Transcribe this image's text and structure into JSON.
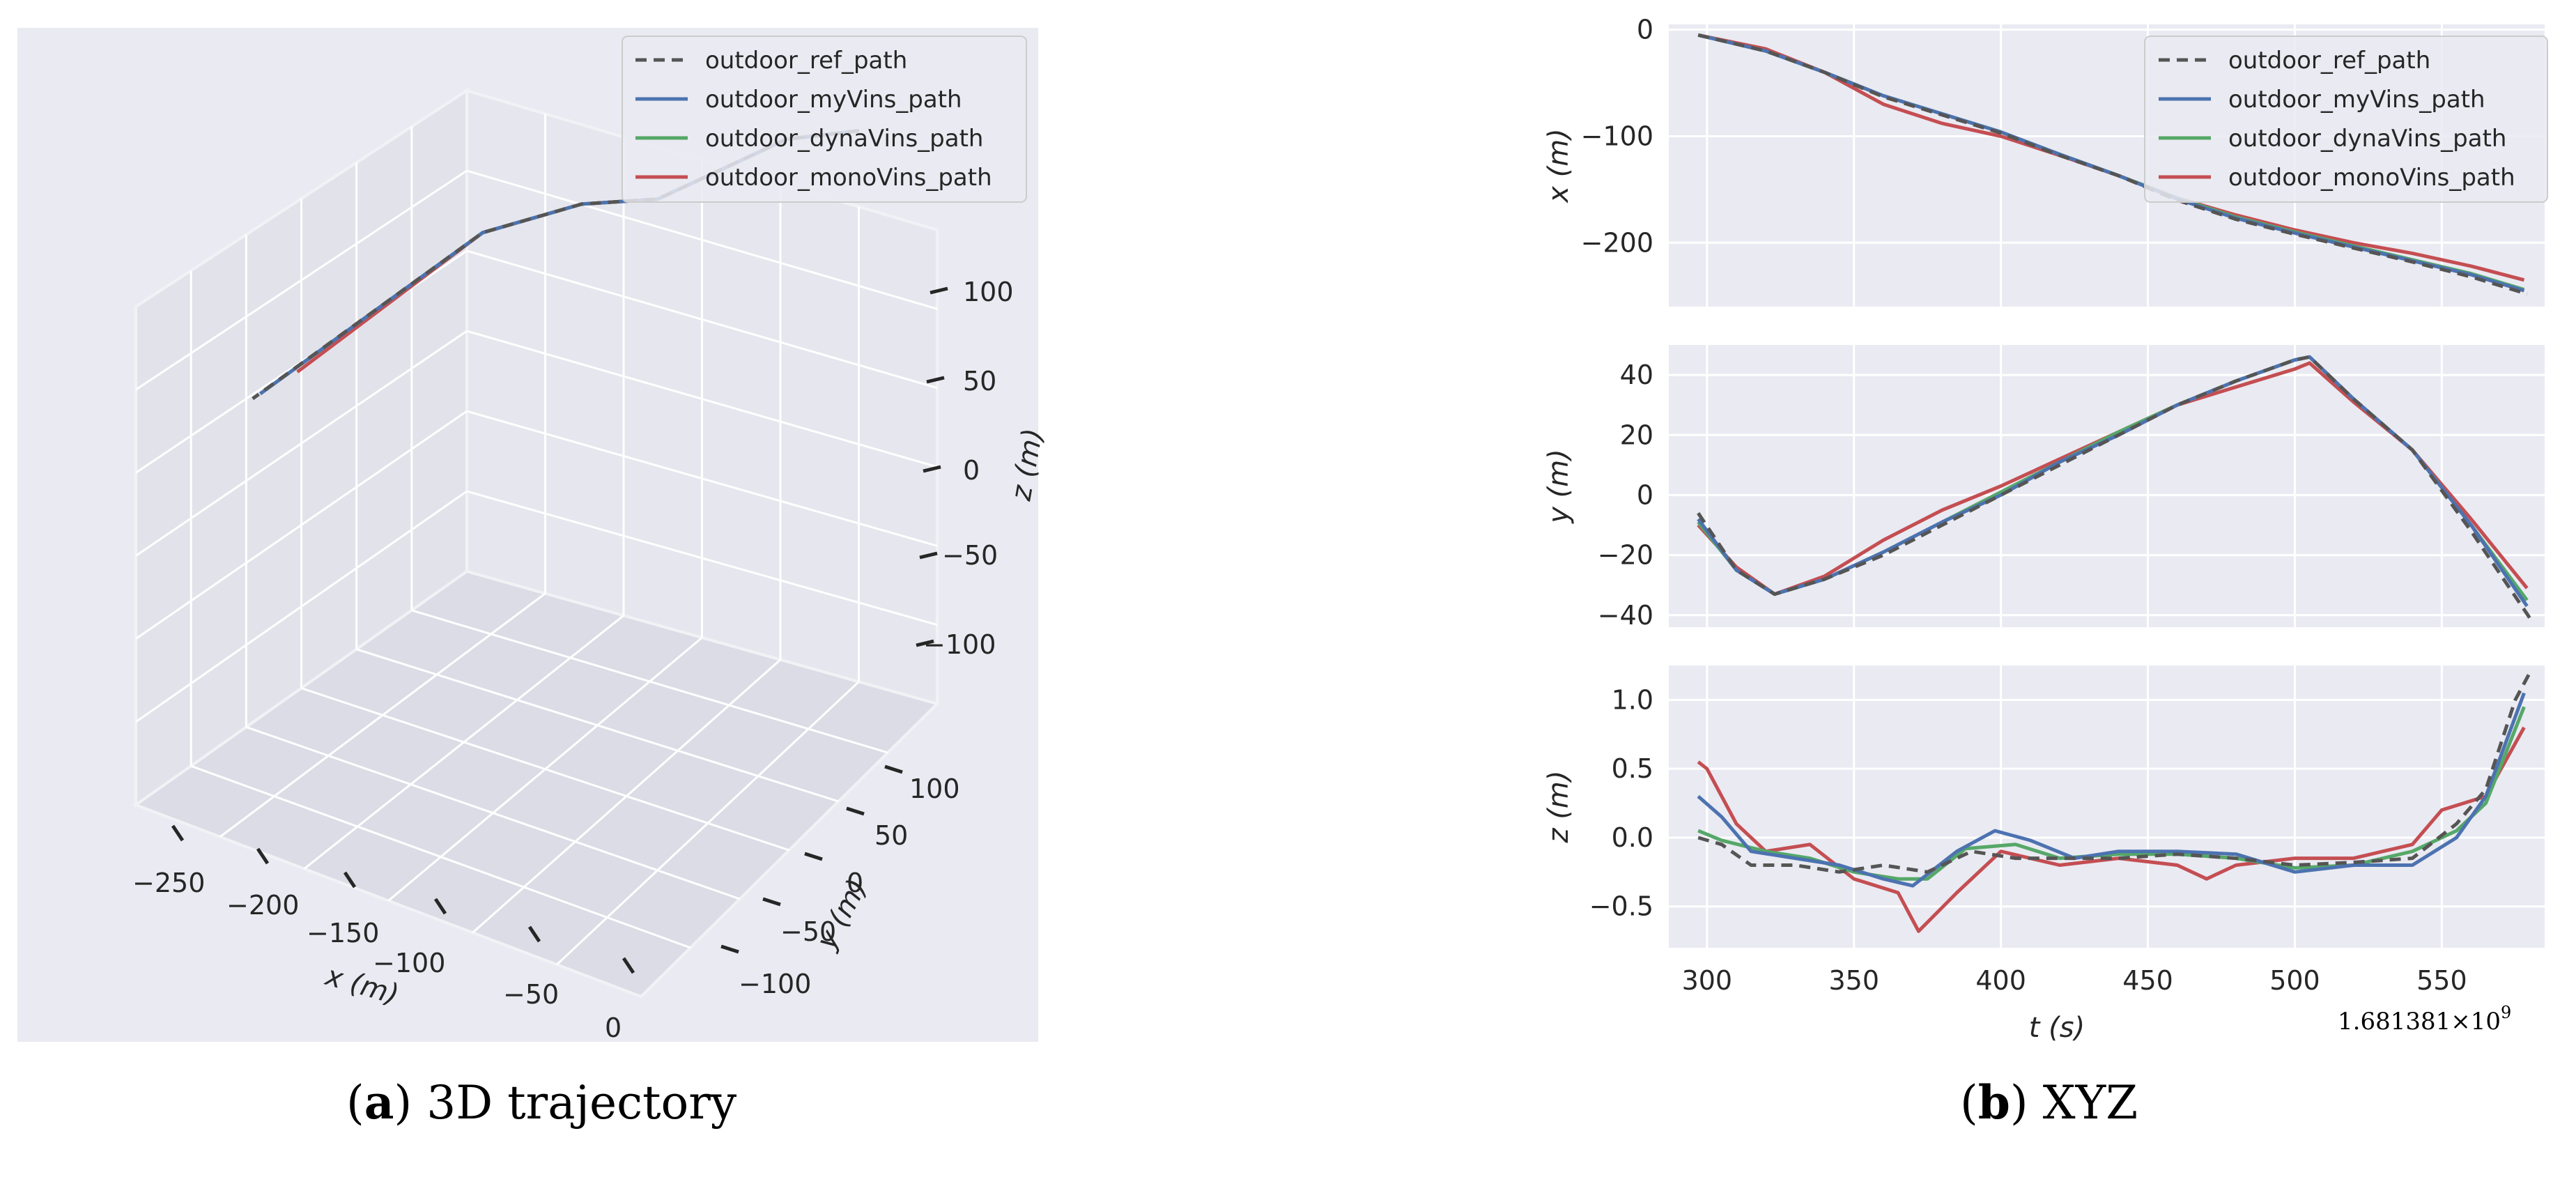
{
  "colors": {
    "background": "#eaeaf2",
    "grid": "#ffffff",
    "ref": "#555555",
    "myVins": "#4c72b0",
    "dynaVins": "#55a868",
    "monoVins": "#c44e52"
  },
  "captions": {
    "a_letter": "a",
    "a_text": " 3D trajectory",
    "b_letter": "b",
    "b_text": " XYZ",
    "lparen": "(",
    "rparen": ")"
  },
  "chart_data": [
    {
      "type": "line",
      "projection": "3d",
      "xlabel": "x (m)",
      "ylabel": "y (m)",
      "zlabel": "z (m)",
      "x_ticks": [
        "−250",
        "−200",
        "−150",
        "−100",
        "−50",
        "0"
      ],
      "y_ticks": [
        "100",
        "50",
        "0",
        "−50",
        "−100"
      ],
      "z_ticks": [
        "100",
        "50",
        "0",
        "−50",
        "−100"
      ],
      "xlim": [
        -260,
        0
      ],
      "ylim": [
        -120,
        120
      ],
      "zlim": [
        -120,
        120
      ],
      "legend_position": "top-right",
      "series": [
        {
          "name": "outdoor_ref_path",
          "style": "dashed",
          "x": [
            -5,
            -50,
            -100,
            -150,
            -200,
            -248
          ],
          "y": [
            -5,
            15,
            5,
            30,
            40,
            -40
          ],
          "z": [
            0,
            0,
            0,
            0,
            0,
            1
          ]
        },
        {
          "name": "outdoor_myVins_path",
          "style": "solid",
          "x": [
            -5,
            -50,
            -100,
            -150,
            -200,
            -246
          ],
          "y": [
            -5,
            15,
            5,
            30,
            40,
            -38
          ],
          "z": [
            0,
            0,
            0,
            0,
            0,
            1
          ]
        },
        {
          "name": "outdoor_dynaVins_path",
          "style": "solid",
          "x": [
            -5,
            -50,
            -100,
            -150,
            -200,
            -245
          ],
          "y": [
            -5,
            15,
            5,
            30,
            40,
            -36
          ],
          "z": [
            0,
            0,
            0,
            0,
            0,
            0.9
          ]
        },
        {
          "name": "outdoor_monoVins_path",
          "style": "solid",
          "x": [
            -5,
            -50,
            -100,
            -150,
            -200,
            -235
          ],
          "y": [
            -5,
            15,
            5,
            30,
            40,
            -30
          ],
          "z": [
            0,
            0,
            0,
            0,
            0,
            0.8
          ]
        }
      ]
    },
    {
      "type": "line",
      "xlabel": "t (s)",
      "offset_label": "1.681381×10",
      "offset_exp": "9",
      "x_ticks": [
        300,
        350,
        400,
        450,
        500,
        550
      ],
      "xlim": [
        287,
        585
      ],
      "legend_position": "top-right",
      "legend": [
        "outdoor_ref_path",
        "outdoor_myVins_path",
        "outdoor_dynaVins_path",
        "outdoor_monoVins_path"
      ],
      "panels": [
        {
          "ylabel": "x (m)",
          "ylim": [
            -260,
            5
          ],
          "y_ticks": [
            0,
            -100,
            -200
          ],
          "series": [
            {
              "name": "outdoor_ref_path",
              "x": [
                297,
                320,
                340,
                360,
                380,
                400,
                420,
                440,
                460,
                480,
                500,
                520,
                540,
                560,
                579
              ],
              "y": [
                -5,
                -20,
                -40,
                -63,
                -80,
                -97,
                -118,
                -137,
                -160,
                -178,
                -192,
                -205,
                -218,
                -232,
                -248
              ]
            },
            {
              "name": "outdoor_myVins_path",
              "x": [
                297,
                320,
                340,
                360,
                380,
                400,
                420,
                440,
                460,
                480,
                500,
                520,
                540,
                560,
                578
              ],
              "y": [
                -5,
                -20,
                -40,
                -62,
                -79,
                -96,
                -117,
                -137,
                -159,
                -177,
                -191,
                -204,
                -217,
                -230,
                -245
              ]
            },
            {
              "name": "outdoor_dynaVins_path",
              "x": [
                297,
                320,
                340,
                360,
                380,
                400,
                420,
                440,
                460,
                480,
                500,
                520,
                540,
                560,
                578
              ],
              "y": [
                -5,
                -20,
                -40,
                -62,
                -79,
                -96,
                -117,
                -137,
                -158,
                -176,
                -190,
                -203,
                -216,
                -229,
                -244
              ]
            },
            {
              "name": "outdoor_monoVins_path",
              "x": [
                297,
                320,
                340,
                360,
                380,
                400,
                420,
                440,
                460,
                480,
                500,
                520,
                540,
                560,
                578
              ],
              "y": [
                -5,
                -18,
                -40,
                -70,
                -88,
                -100,
                -118,
                -137,
                -158,
                -174,
                -188,
                -200,
                -210,
                -222,
                -235
              ]
            }
          ]
        },
        {
          "ylabel": "y (m)",
          "ylim": [
            -44,
            50
          ],
          "y_ticks": [
            40,
            20,
            0,
            -20,
            -40
          ],
          "series": [
            {
              "name": "outdoor_ref_path",
              "x": [
                297,
                310,
                323,
                340,
                360,
                380,
                400,
                420,
                440,
                460,
                480,
                500,
                505,
                520,
                540,
                560,
                580
              ],
              "y": [
                -6,
                -25,
                -33,
                -28,
                -20,
                -10,
                0,
                10,
                20,
                30,
                38,
                45,
                46,
                32,
                15,
                -12,
                -41
              ]
            },
            {
              "name": "outdoor_myVins_path",
              "x": [
                297,
                310,
                323,
                340,
                360,
                380,
                400,
                420,
                440,
                460,
                480,
                500,
                505,
                520,
                540,
                560,
                579
              ],
              "y": [
                -8,
                -25,
                -33,
                -28,
                -19,
                -9,
                0,
                11,
                20,
                30,
                38,
                45,
                46,
                32,
                15,
                -10,
                -37
              ]
            },
            {
              "name": "outdoor_dynaVins_path",
              "x": [
                297,
                310,
                323,
                340,
                360,
                380,
                400,
                420,
                440,
                460,
                480,
                500,
                505,
                520,
                540,
                560,
                579
              ],
              "y": [
                -9,
                -25,
                -33,
                -28,
                -19,
                -9,
                1,
                11,
                21,
                30,
                38,
                45,
                46,
                32,
                15,
                -10,
                -35
              ]
            },
            {
              "name": "outdoor_monoVins_path",
              "x": [
                297,
                310,
                323,
                340,
                360,
                380,
                400,
                420,
                440,
                460,
                480,
                500,
                505,
                520,
                540,
                560,
                579
              ],
              "y": [
                -10,
                -24,
                -33,
                -27,
                -15,
                -5,
                3,
                12,
                21,
                30,
                36,
                42,
                44,
                31,
                15,
                -8,
                -31
              ]
            }
          ]
        },
        {
          "ylabel": "z (m)",
          "ylim": [
            -0.8,
            1.25
          ],
          "y_ticks": [
            1.0,
            0.5,
            0.0,
            -0.5
          ],
          "series": [
            {
              "name": "outdoor_ref_path",
              "x": [
                297,
                305,
                315,
                330,
                345,
                360,
                375,
                390,
                405,
                420,
                440,
                460,
                480,
                500,
                520,
                540,
                555,
                565,
                575,
                580
              ],
              "y": [
                0.0,
                -0.05,
                -0.2,
                -0.2,
                -0.25,
                -0.2,
                -0.25,
                -0.1,
                -0.15,
                -0.15,
                -0.15,
                -0.12,
                -0.15,
                -0.2,
                -0.18,
                -0.15,
                0.1,
                0.35,
                1.0,
                1.2
              ]
            },
            {
              "name": "outdoor_myVins_path",
              "x": [
                297,
                305,
                315,
                330,
                345,
                360,
                370,
                385,
                398,
                410,
                425,
                440,
                460,
                480,
                500,
                520,
                540,
                555,
                565,
                578
              ],
              "y": [
                0.3,
                0.15,
                -0.1,
                -0.15,
                -0.2,
                -0.3,
                -0.35,
                -0.1,
                0.05,
                -0.02,
                -0.15,
                -0.1,
                -0.1,
                -0.12,
                -0.25,
                -0.2,
                -0.2,
                0.0,
                0.3,
                1.05
              ]
            },
            {
              "name": "outdoor_dynaVins_path",
              "x": [
                297,
                305,
                320,
                335,
                350,
                365,
                375,
                388,
                405,
                420,
                440,
                460,
                480,
                500,
                520,
                540,
                555,
                565,
                578
              ],
              "y": [
                0.05,
                -0.02,
                -0.1,
                -0.15,
                -0.25,
                -0.3,
                -0.3,
                -0.08,
                -0.05,
                -0.15,
                -0.12,
                -0.12,
                -0.15,
                -0.22,
                -0.2,
                -0.1,
                0.05,
                0.25,
                0.95
              ]
            },
            {
              "name": "outdoor_monoVins_path",
              "x": [
                297,
                300,
                310,
                320,
                335,
                350,
                365,
                372,
                385,
                400,
                420,
                440,
                460,
                470,
                480,
                500,
                520,
                540,
                550,
                565,
                578
              ],
              "y": [
                0.55,
                0.5,
                0.1,
                -0.1,
                -0.05,
                -0.3,
                -0.4,
                -0.68,
                -0.4,
                -0.1,
                -0.2,
                -0.15,
                -0.2,
                -0.3,
                -0.2,
                -0.15,
                -0.15,
                -0.05,
                0.2,
                0.3,
                0.8
              ]
            }
          ]
        }
      ]
    }
  ]
}
